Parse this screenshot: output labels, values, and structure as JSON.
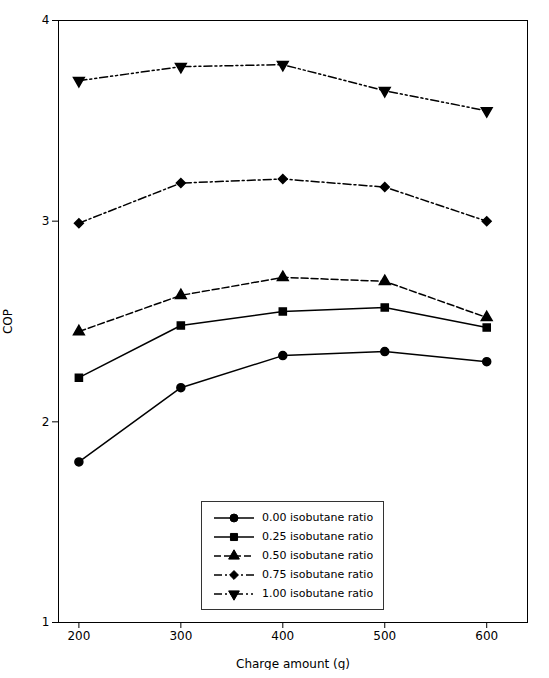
{
  "chart_data": {
    "type": "line",
    "xlabel": "Charge amount (g)",
    "ylabel": "COP",
    "x": [
      200,
      300,
      400,
      500,
      600
    ],
    "series": [
      {
        "name": "0.00 isobutane ratio",
        "color": "black",
        "marker": "circle",
        "line_style": "solid",
        "values": [
          1.8,
          2.17,
          2.33,
          2.35,
          2.3
        ]
      },
      {
        "name": "0.25 isobutane ratio",
        "color": "black",
        "marker": "square",
        "line_style": "solid",
        "values": [
          2.22,
          2.48,
          2.55,
          2.57,
          2.47
        ]
      },
      {
        "name": "0.50 isobutane ratio",
        "color": "black",
        "marker": "triangle-up",
        "line_style": "dashed",
        "values": [
          2.45,
          2.63,
          2.72,
          2.7,
          2.52
        ]
      },
      {
        "name": "0.75 isobutane ratio",
        "color": "black",
        "marker": "diamond",
        "line_style": "dashdot",
        "values": [
          2.99,
          3.19,
          3.21,
          3.17,
          3.0
        ]
      },
      {
        "name": "1.00 isobutane ratio",
        "color": "black",
        "marker": "triangle-down",
        "line_style": "dashdotdot",
        "values": [
          3.7,
          3.77,
          3.78,
          3.65,
          3.55
        ]
      }
    ],
    "xlim": [
      180,
      640
    ],
    "ylim": [
      1,
      4
    ],
    "xticks": [
      200,
      300,
      400,
      500,
      600
    ],
    "yticks": [
      1,
      2,
      3,
      4
    ],
    "grid": false,
    "legend": "lower center"
  }
}
